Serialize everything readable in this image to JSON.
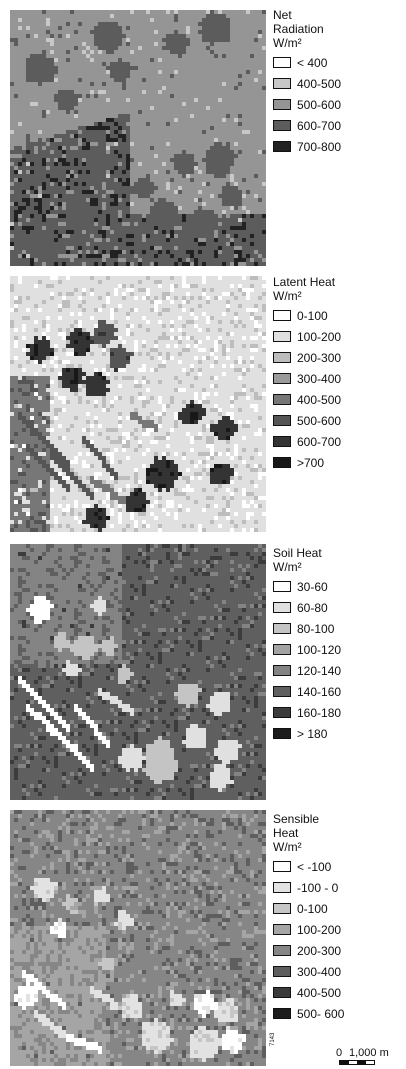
{
  "panels": [
    {
      "id": "net-radiation",
      "title_lines": [
        "Net",
        "Radiation",
        "W/m²"
      ],
      "legend": [
        {
          "label": "< 400",
          "color": "#ffffff"
        },
        {
          "label": "400-500",
          "color": "#c8c8c8"
        },
        {
          "label": "500-600",
          "color": "#959595"
        },
        {
          "label": "600-700",
          "color": "#5c5c5c"
        },
        {
          "label": "700-800",
          "color": "#222222"
        }
      ]
    },
    {
      "id": "latent-heat",
      "title_lines": [
        "Latent Heat",
        "W/m²"
      ],
      "legend": [
        {
          "label": "0-100",
          "color": "#ffffff"
        },
        {
          "label": "100-200",
          "color": "#e0e0e0"
        },
        {
          "label": "200-300",
          "color": "#bdbdbd"
        },
        {
          "label": "300-400",
          "color": "#9a9a9a"
        },
        {
          "label": "400-500",
          "color": "#777777"
        },
        {
          "label": "500-600",
          "color": "#555555"
        },
        {
          "label": "600-700",
          "color": "#343434"
        },
        {
          "label": ">700",
          "color": "#181818"
        }
      ]
    },
    {
      "id": "soil-heat",
      "title_lines": [
        "Soil Heat",
        "W/m²"
      ],
      "legend": [
        {
          "label": "30-60",
          "color": "#ffffff"
        },
        {
          "label": "60-80",
          "color": "#e0e0e0"
        },
        {
          "label": "80-100",
          "color": "#c4c4c4"
        },
        {
          "label": "100-120",
          "color": "#a3a3a3"
        },
        {
          "label": "120-140",
          "color": "#848484"
        },
        {
          "label": "140-160",
          "color": "#5f5f5f"
        },
        {
          "label": "160-180",
          "color": "#3c3c3c"
        },
        {
          "label": "> 180",
          "color": "#1c1c1c"
        }
      ]
    },
    {
      "id": "sensible-heat",
      "title_lines": [
        "Sensible",
        "Heat",
        "W/m²"
      ],
      "legend": [
        {
          "label": "< -100",
          "color": "#ffffff"
        },
        {
          "label": "-100 - 0",
          "color": "#e2e2e2"
        },
        {
          "label": "0-100",
          "color": "#c6c6c6"
        },
        {
          "label": "100-200",
          "color": "#a5a5a5"
        },
        {
          "label": "200-300",
          "color": "#868686"
        },
        {
          "label": "300-400",
          "color": "#5e5e5e"
        },
        {
          "label": "400-500",
          "color": "#3a3a3a"
        },
        {
          "label": "500- 600",
          "color": "#1c1c1c"
        }
      ]
    }
  ],
  "figure_id": "7143",
  "scale": {
    "zero": "0",
    "max": "1,000 m"
  }
}
